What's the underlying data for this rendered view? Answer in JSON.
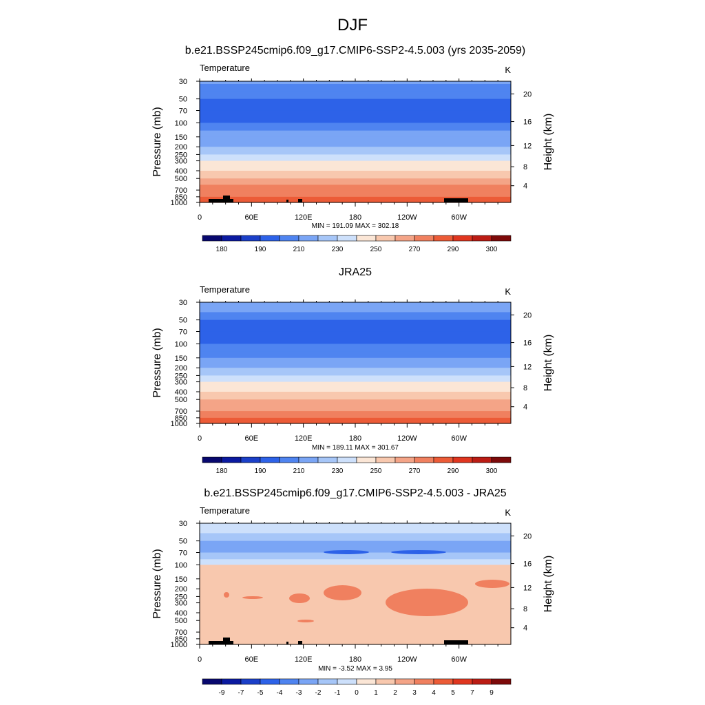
{
  "figure": {
    "title": "DJF"
  },
  "colors": {
    "abs_levels": [
      "#08086e",
      "#0b1aa0",
      "#1b3fc8",
      "#2d62e8",
      "#4f84f0",
      "#7aa5f5",
      "#a6c6f8",
      "#cde0fb",
      "#fbe6d6",
      "#f8c8ae",
      "#f4a487",
      "#f0805f",
      "#ec5b37",
      "#e0361f",
      "#bb1c14",
      "#7d0a0a"
    ],
    "diff_levels": [
      "#08086e",
      "#0b1aa0",
      "#1b3fc8",
      "#2d62e8",
      "#4f84f0",
      "#7aa5f5",
      "#a6c6f8",
      "#cde0fb",
      "#fbe6d6",
      "#f8c8ae",
      "#f4a487",
      "#f0805f",
      "#ec5b37",
      "#e0361f",
      "#bb1c14",
      "#7d0a0a"
    ],
    "terrain": "#000000"
  },
  "chart_data": [
    {
      "type": "heatmap",
      "title": "b.e21.BSSP245cmip6.f09_g17.CMIP6-SSP2-4.5.003 (yrs 2035-2059)",
      "variable_label": "Temperature",
      "units_label": "K",
      "ylabel": "Pressure (mb)",
      "ylabel_right": "Height (km)",
      "x_ticks": [
        "0",
        "60E",
        "120E",
        "180",
        "120W",
        "60W"
      ],
      "y_ticks": [
        "30",
        "50",
        "70",
        "100",
        "150",
        "200",
        "250",
        "300",
        "400",
        "500",
        "700",
        "850",
        "1000"
      ],
      "y_ticks_right": [
        "20",
        "16",
        "12",
        "8",
        "4"
      ],
      "xlim": [
        0,
        360
      ],
      "ylim": [
        1000,
        30
      ],
      "y_scale": "log",
      "stats": "MIN = 191.09  MAX = 302.18",
      "colorbar_labels": [
        "180",
        "190",
        "210",
        "230",
        "250",
        "270",
        "290",
        "300"
      ],
      "levels": [
        {
          "p": 30,
          "t": 212
        },
        {
          "p": 40,
          "t": 206
        },
        {
          "p": 50,
          "t": 200
        },
        {
          "p": 70,
          "t": 198
        },
        {
          "p": 100,
          "t": 200
        },
        {
          "p": 125,
          "t": 208
        },
        {
          "p": 150,
          "t": 213
        },
        {
          "p": 200,
          "t": 222
        },
        {
          "p": 250,
          "t": 230
        },
        {
          "p": 300,
          "t": 238
        },
        {
          "p": 400,
          "t": 250
        },
        {
          "p": 500,
          "t": 260
        },
        {
          "p": 600,
          "t": 267
        },
        {
          "p": 700,
          "t": 273
        },
        {
          "p": 850,
          "t": 283
        },
        {
          "p": 1000,
          "t": 294
        }
      ]
    },
    {
      "type": "heatmap",
      "title": "JRA25",
      "variable_label": "Temperature",
      "units_label": "K",
      "ylabel": "Pressure (mb)",
      "ylabel_right": "Height (km)",
      "x_ticks": [
        "0",
        "60E",
        "120E",
        "180",
        "120W",
        "60W"
      ],
      "y_ticks": [
        "30",
        "50",
        "70",
        "100",
        "150",
        "200",
        "250",
        "300",
        "400",
        "500",
        "700",
        "850",
        "1000"
      ],
      "y_ticks_right": [
        "20",
        "16",
        "12",
        "8",
        "4"
      ],
      "xlim": [
        0,
        360
      ],
      "ylim": [
        1000,
        30
      ],
      "y_scale": "log",
      "stats": "MIN = 189.11  MAX = 301.67",
      "colorbar_labels": [
        "180",
        "190",
        "210",
        "230",
        "250",
        "270",
        "290",
        "300"
      ],
      "levels": [
        {
          "p": 30,
          "t": 213
        },
        {
          "p": 40,
          "t": 207
        },
        {
          "p": 50,
          "t": 201
        },
        {
          "p": 70,
          "t": 197
        },
        {
          "p": 100,
          "t": 196
        },
        {
          "p": 125,
          "t": 205
        },
        {
          "p": 150,
          "t": 211
        },
        {
          "p": 200,
          "t": 220
        },
        {
          "p": 250,
          "t": 229
        },
        {
          "p": 300,
          "t": 237
        },
        {
          "p": 400,
          "t": 249
        },
        {
          "p": 500,
          "t": 258
        },
        {
          "p": 600,
          "t": 265
        },
        {
          "p": 700,
          "t": 271
        },
        {
          "p": 850,
          "t": 281
        },
        {
          "p": 1000,
          "t": 292
        }
      ]
    },
    {
      "type": "heatmap",
      "title": "b.e21.BSSP245cmip6.f09_g17.CMIP6-SSP2-4.5.003 - JRA25",
      "variable_label": "Temperature",
      "units_label": "K",
      "ylabel": "Pressure (mb)",
      "ylabel_right": "Height (km)",
      "x_ticks": [
        "0",
        "60E",
        "120E",
        "180",
        "120W",
        "60W"
      ],
      "y_ticks": [
        "30",
        "50",
        "70",
        "100",
        "150",
        "200",
        "250",
        "300",
        "400",
        "500",
        "700",
        "850",
        "1000"
      ],
      "y_ticks_right": [
        "20",
        "16",
        "12",
        "8",
        "4"
      ],
      "xlim": [
        0,
        360
      ],
      "ylim": [
        1000,
        30
      ],
      "y_scale": "log",
      "stats": "MIN = -3.52  MAX =  3.95",
      "colorbar_labels": [
        "-9",
        "-7",
        "-5",
        "-4",
        "-3",
        "-2",
        "-1",
        "0",
        "1",
        "2",
        "3",
        "4",
        "5",
        "7",
        "9"
      ],
      "levels": [
        {
          "p": 30,
          "t": -0.5
        },
        {
          "p": 40,
          "t": -1.5
        },
        {
          "p": 50,
          "t": -2.5
        },
        {
          "p": 70,
          "t": -2.5
        },
        {
          "p": 85,
          "t": -1.5
        },
        {
          "p": 100,
          "t": 0.5
        },
        {
          "p": 125,
          "t": 1.5
        },
        {
          "p": 150,
          "t": 1.5
        },
        {
          "p": 200,
          "t": 1.5
        },
        {
          "p": 300,
          "t": 1.5
        },
        {
          "p": 400,
          "t": 1.5
        },
        {
          "p": 500,
          "t": 1.5
        },
        {
          "p": 600,
          "t": 1.5
        },
        {
          "p": 700,
          "t": 1.5
        },
        {
          "p": 850,
          "t": 0.5
        },
        {
          "p": 1000,
          "t": 1.5
        }
      ]
    }
  ]
}
